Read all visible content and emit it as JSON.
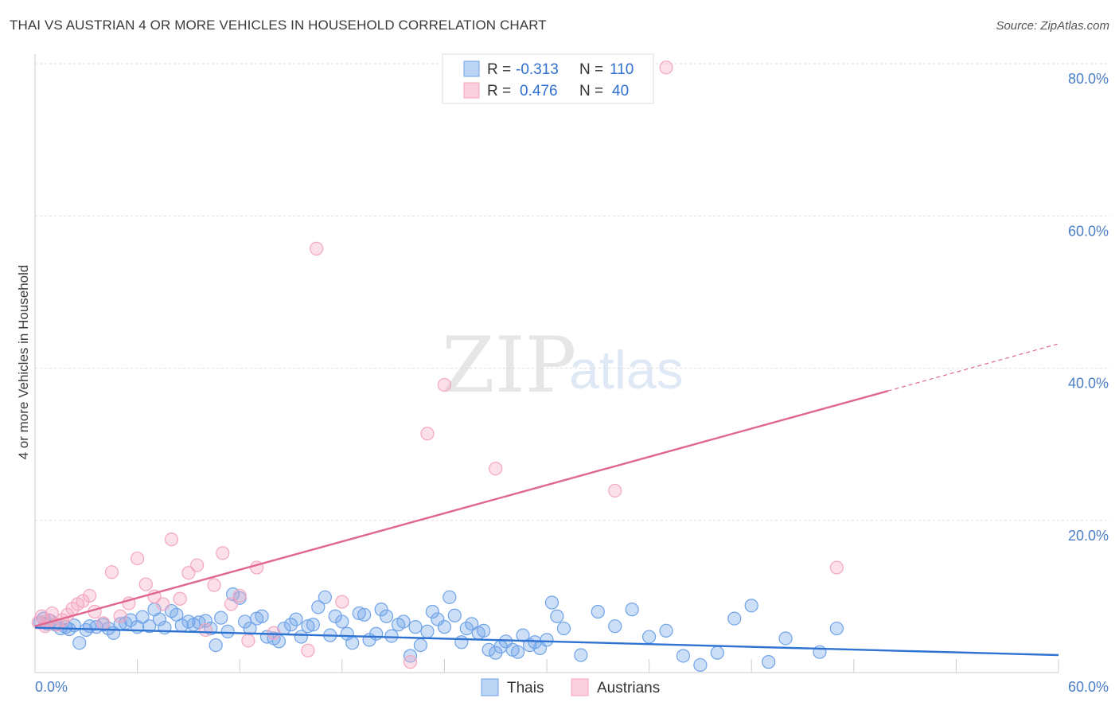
{
  "title": "THAI VS AUSTRIAN 4 OR MORE VEHICLES IN HOUSEHOLD CORRELATION CHART",
  "source": "Source: ZipAtlas.com",
  "watermark": {
    "zip": "ZIP",
    "atlas": "atlas"
  },
  "legend": {
    "rows": [
      {
        "r_label": "R =",
        "r_value": "-0.313",
        "n_label": "N =",
        "n_value": "110"
      },
      {
        "r_label": "R =",
        "r_value": "0.476",
        "n_label": "N =",
        "n_value": "40"
      }
    ]
  },
  "bottom_legend": {
    "thais": "Thais",
    "austrians": "Austrians"
  },
  "chart_data": {
    "type": "scatter",
    "title": "THAI VS AUSTRIAN 4 OR MORE VEHICLES IN HOUSEHOLD CORRELATION CHART",
    "xlabel": "",
    "ylabel": "4 or more Vehicles in Household",
    "xlim": [
      0,
      60
    ],
    "ylim": [
      0,
      80
    ],
    "x_tick_labels": [
      "0.0%",
      "60.0%"
    ],
    "y_ticks": [
      20,
      40,
      60,
      80
    ],
    "y_tick_labels": [
      "20.0%",
      "40.0%",
      "60.0%",
      "80.0%"
    ],
    "grid": true,
    "colors": {
      "thais": "#6fa3e8",
      "thais_line": "#2e72d2",
      "austrians": "#f4a6bf",
      "austrians_line": "#e0668f"
    },
    "series": [
      {
        "name": "Thais",
        "r": -0.313,
        "n": 110,
        "trend": {
          "x": [
            0,
            60
          ],
          "y": [
            5.9,
            2.3
          ]
        },
        "points": [
          [
            0.3,
            6.6
          ],
          [
            0.5,
            7.1
          ],
          [
            0.7,
            6.4
          ],
          [
            0.9,
            6.8
          ],
          [
            1.2,
            6.3
          ],
          [
            1.5,
            5.8
          ],
          [
            1.8,
            6.0
          ],
          [
            2.0,
            5.7
          ],
          [
            2.3,
            6.2
          ],
          [
            2.6,
            3.9
          ],
          [
            3.0,
            5.6
          ],
          [
            3.2,
            6.1
          ],
          [
            3.6,
            6.0
          ],
          [
            4.0,
            6.3
          ],
          [
            4.3,
            5.8
          ],
          [
            4.6,
            5.2
          ],
          [
            5.0,
            6.4
          ],
          [
            5.3,
            6.5
          ],
          [
            5.6,
            6.9
          ],
          [
            6.0,
            6.0
          ],
          [
            6.3,
            7.3
          ],
          [
            6.7,
            6.1
          ],
          [
            7.0,
            8.3
          ],
          [
            7.3,
            7.0
          ],
          [
            7.6,
            5.9
          ],
          [
            8.0,
            8.1
          ],
          [
            8.3,
            7.6
          ],
          [
            8.6,
            6.2
          ],
          [
            9.0,
            6.7
          ],
          [
            9.3,
            6.3
          ],
          [
            9.6,
            6.6
          ],
          [
            10.0,
            6.8
          ],
          [
            10.3,
            5.8
          ],
          [
            10.6,
            3.6
          ],
          [
            10.9,
            7.2
          ],
          [
            11.3,
            5.4
          ],
          [
            11.6,
            10.3
          ],
          [
            12.0,
            9.8
          ],
          [
            12.3,
            6.7
          ],
          [
            12.6,
            5.8
          ],
          [
            13.0,
            7.1
          ],
          [
            13.3,
            7.4
          ],
          [
            13.6,
            4.7
          ],
          [
            14.0,
            4.5
          ],
          [
            14.3,
            4.1
          ],
          [
            14.6,
            5.8
          ],
          [
            15.0,
            6.3
          ],
          [
            15.3,
            7.0
          ],
          [
            15.6,
            4.7
          ],
          [
            16.0,
            6.1
          ],
          [
            16.3,
            6.3
          ],
          [
            16.6,
            8.6
          ],
          [
            17.0,
            9.9
          ],
          [
            17.3,
            4.9
          ],
          [
            17.6,
            7.4
          ],
          [
            18.0,
            6.7
          ],
          [
            18.3,
            5.1
          ],
          [
            18.6,
            3.9
          ],
          [
            19.0,
            7.8
          ],
          [
            19.3,
            7.6
          ],
          [
            19.6,
            4.3
          ],
          [
            20.0,
            5.1
          ],
          [
            20.3,
            8.3
          ],
          [
            20.6,
            7.4
          ],
          [
            20.9,
            4.8
          ],
          [
            21.3,
            6.3
          ],
          [
            21.6,
            6.7
          ],
          [
            22.0,
            2.2
          ],
          [
            22.3,
            6.0
          ],
          [
            22.6,
            3.6
          ],
          [
            23.0,
            5.4
          ],
          [
            23.3,
            8.0
          ],
          [
            23.6,
            7.0
          ],
          [
            24.0,
            6.0
          ],
          [
            24.3,
            9.9
          ],
          [
            24.6,
            7.5
          ],
          [
            25.0,
            4.0
          ],
          [
            25.3,
            5.8
          ],
          [
            25.6,
            6.4
          ],
          [
            26.0,
            5.2
          ],
          [
            26.3,
            5.5
          ],
          [
            26.6,
            3.0
          ],
          [
            27.0,
            2.6
          ],
          [
            27.3,
            3.4
          ],
          [
            27.6,
            4.1
          ],
          [
            28.0,
            3.0
          ],
          [
            28.3,
            2.7
          ],
          [
            28.6,
            4.9
          ],
          [
            29.0,
            3.6
          ],
          [
            29.3,
            4.0
          ],
          [
            29.6,
            3.2
          ],
          [
            30.0,
            4.3
          ],
          [
            30.3,
            9.2
          ],
          [
            30.6,
            7.4
          ],
          [
            31.0,
            5.8
          ],
          [
            32.0,
            2.3
          ],
          [
            33.0,
            8.0
          ],
          [
            34.0,
            6.1
          ],
          [
            35.0,
            8.3
          ],
          [
            36.0,
            4.7
          ],
          [
            37.0,
            5.5
          ],
          [
            38.0,
            2.2
          ],
          [
            39.0,
            1.0
          ],
          [
            40.0,
            2.6
          ],
          [
            41.0,
            7.1
          ],
          [
            42.0,
            8.8
          ],
          [
            43.0,
            1.4
          ],
          [
            44.0,
            4.5
          ],
          [
            46.0,
            2.7
          ],
          [
            47.0,
            5.8
          ]
        ]
      },
      {
        "name": "Austrians",
        "r": 0.476,
        "n": 40,
        "trend": {
          "x": [
            0,
            50
          ],
          "y": [
            6.1,
            37.0
          ]
        },
        "trend_dashed": {
          "x": [
            50,
            60
          ],
          "y": [
            37.0,
            43.2
          ]
        },
        "points": [
          [
            0.2,
            6.6
          ],
          [
            0.4,
            7.4
          ],
          [
            0.6,
            6.1
          ],
          [
            0.8,
            6.9
          ],
          [
            1.0,
            7.8
          ],
          [
            1.3,
            6.3
          ],
          [
            1.6,
            6.9
          ],
          [
            1.9,
            7.6
          ],
          [
            2.2,
            8.4
          ],
          [
            2.5,
            9.0
          ],
          [
            2.8,
            9.4
          ],
          [
            3.2,
            10.1
          ],
          [
            3.5,
            8.0
          ],
          [
            4.0,
            6.5
          ],
          [
            4.5,
            13.2
          ],
          [
            5.0,
            7.4
          ],
          [
            5.5,
            9.1
          ],
          [
            6.0,
            15.0
          ],
          [
            6.5,
            11.6
          ],
          [
            7.0,
            10.0
          ],
          [
            7.5,
            9.0
          ],
          [
            8.0,
            17.5
          ],
          [
            8.5,
            9.7
          ],
          [
            9.0,
            13.1
          ],
          [
            9.5,
            14.1
          ],
          [
            10.0,
            5.6
          ],
          [
            10.5,
            11.5
          ],
          [
            11.0,
            15.7
          ],
          [
            11.5,
            9.0
          ],
          [
            12.0,
            10.1
          ],
          [
            12.5,
            4.2
          ],
          [
            13.0,
            13.8
          ],
          [
            14.0,
            5.2
          ],
          [
            16.0,
            2.9
          ],
          [
            18.0,
            9.3
          ],
          [
            22.0,
            1.4
          ],
          [
            23.0,
            31.4
          ],
          [
            24.0,
            37.8
          ],
          [
            27.0,
            26.8
          ],
          [
            34.0,
            23.9
          ]
        ]
      },
      {
        "name": "Austrians (outliers)",
        "points": [
          [
            16.5,
            55.7
          ],
          [
            37.0,
            79.5
          ],
          [
            47.0,
            13.8
          ]
        ]
      }
    ]
  }
}
